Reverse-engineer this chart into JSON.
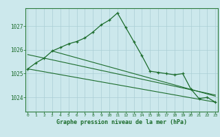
{
  "title": "Graphe pression niveau de la mer (hPa)",
  "bg_color": "#cce8ec",
  "grid_color": "#aacdd4",
  "line_color": "#1a6b2a",
  "spine_color": "#2a7a3a",
  "x_ticks": [
    0,
    1,
    2,
    3,
    4,
    5,
    6,
    7,
    8,
    9,
    10,
    11,
    12,
    13,
    14,
    15,
    16,
    17,
    18,
    19,
    20,
    21,
    22,
    23
  ],
  "y_ticks": [
    1024,
    1025,
    1026,
    1027
  ],
  "ylim": [
    1023.4,
    1027.75
  ],
  "xlim": [
    -0.3,
    23.3
  ],
  "series1_x": [
    0,
    1,
    2,
    3,
    4,
    5,
    6,
    7,
    8,
    9,
    10,
    11,
    12,
    13,
    14,
    15,
    16,
    17,
    18,
    19,
    20,
    21,
    22,
    23
  ],
  "series1_y": [
    1025.2,
    1025.45,
    1025.65,
    1025.95,
    1026.1,
    1026.25,
    1026.35,
    1026.5,
    1026.75,
    1027.05,
    1027.25,
    1027.55,
    1026.95,
    1026.35,
    1025.75,
    1025.1,
    1025.05,
    1025.0,
    1024.95,
    1025.0,
    1024.35,
    1023.95,
    1024.0,
    1023.8
  ],
  "series2_x": [
    0,
    23
  ],
  "series2_y": [
    1025.2,
    1023.8
  ],
  "series3_x": [
    3,
    23
  ],
  "series3_y": [
    1025.95,
    1024.05
  ],
  "series4_x": [
    0,
    23
  ],
  "series4_y": [
    1025.8,
    1024.1
  ]
}
